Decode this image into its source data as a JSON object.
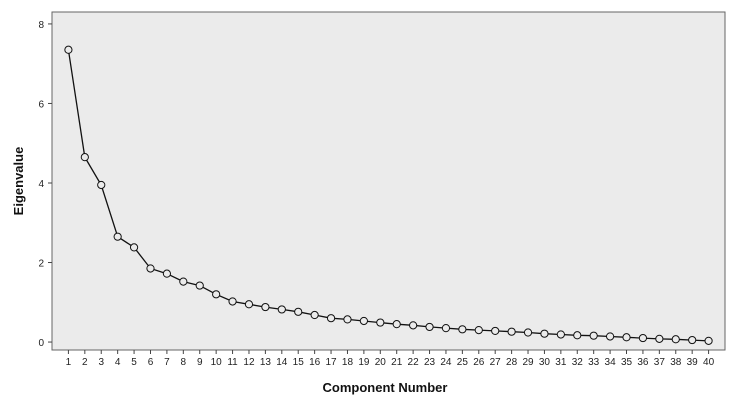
{
  "chart_data": {
    "type": "line",
    "title": "",
    "xlabel": "Component Number",
    "ylabel": "Eigenvalue",
    "x": [
      1,
      2,
      3,
      4,
      5,
      6,
      7,
      8,
      9,
      10,
      11,
      12,
      13,
      14,
      15,
      16,
      17,
      18,
      19,
      20,
      21,
      22,
      23,
      24,
      25,
      26,
      27,
      28,
      29,
      30,
      31,
      32,
      33,
      34,
      35,
      36,
      37,
      38,
      39,
      40
    ],
    "series": [
      {
        "values": [
          7.35,
          4.65,
          3.95,
          2.65,
          2.38,
          1.85,
          1.72,
          1.52,
          1.42,
          1.2,
          1.02,
          0.95,
          0.88,
          0.82,
          0.76,
          0.68,
          0.6,
          0.57,
          0.53,
          0.49,
          0.45,
          0.42,
          0.38,
          0.35,
          0.32,
          0.3,
          0.28,
          0.26,
          0.24,
          0.21,
          0.19,
          0.17,
          0.16,
          0.14,
          0.12,
          0.1,
          0.08,
          0.07,
          0.05,
          0.03
        ]
      }
    ],
    "yticks": [
      0,
      2,
      4,
      6,
      8
    ],
    "ylim": [
      -0.2,
      8.3
    ],
    "xlim": [
      0,
      41
    ],
    "grid": false,
    "legend": "none",
    "colors": {
      "plot_background": "#ebebeb",
      "line": "#111111",
      "marker_fill": "#ebebeb"
    }
  }
}
